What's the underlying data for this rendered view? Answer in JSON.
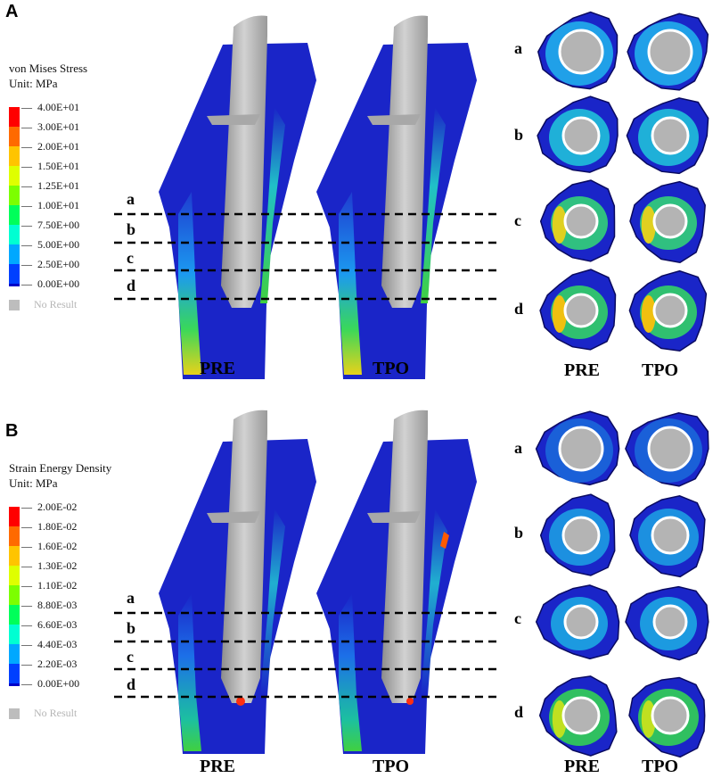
{
  "panels": [
    {
      "letter": "A",
      "legend_title_line1": "von Mises Stress",
      "legend_title_line2": "Unit: MPa",
      "legend_ticks": [
        "4.00E+01",
        "3.00E+01",
        "2.00E+01",
        "1.50E+01",
        "1.25E+01",
        "1.00E+01",
        "7.50E+00",
        "5.00E+00",
        "2.50E+00",
        "0.00E+00"
      ],
      "no_result_label": "No Result",
      "cut_labels": [
        "a",
        "b",
        "c",
        "d"
      ],
      "model_labels": [
        "PRE",
        "TPO"
      ],
      "section_row_labels": [
        "a",
        "b",
        "c",
        "d"
      ],
      "section_col_labels": [
        "PRE",
        "TPO"
      ]
    },
    {
      "letter": "B",
      "legend_title_line1": "Strain Energy Density",
      "legend_title_line2": "Unit: MPa",
      "legend_ticks": [
        "2.00E-02",
        "1.80E-02",
        "1.60E-02",
        "1.30E-02",
        "1.10E-02",
        "8.80E-03",
        "6.60E-03",
        "4.40E-03",
        "2.20E-03",
        "0.00E+00"
      ],
      "no_result_label": "No Result",
      "cut_labels": [
        "a",
        "b",
        "c",
        "d"
      ],
      "model_labels": [
        "PRE",
        "TPO"
      ],
      "section_row_labels": [
        "a",
        "b",
        "c",
        "d"
      ],
      "section_col_labels": [
        "PRE",
        "TPO"
      ]
    }
  ],
  "colors": {
    "scale": [
      "#ff0000",
      "#ff6a00",
      "#ffc400",
      "#dfff00",
      "#7cff00",
      "#00ff5a",
      "#00ffd2",
      "#00a8ff",
      "#0040ff",
      "#0000c8"
    ],
    "bone_blue": "#1a25c8",
    "implant_gray": "#b4b4b4",
    "no_result": "#bdbdbd"
  }
}
